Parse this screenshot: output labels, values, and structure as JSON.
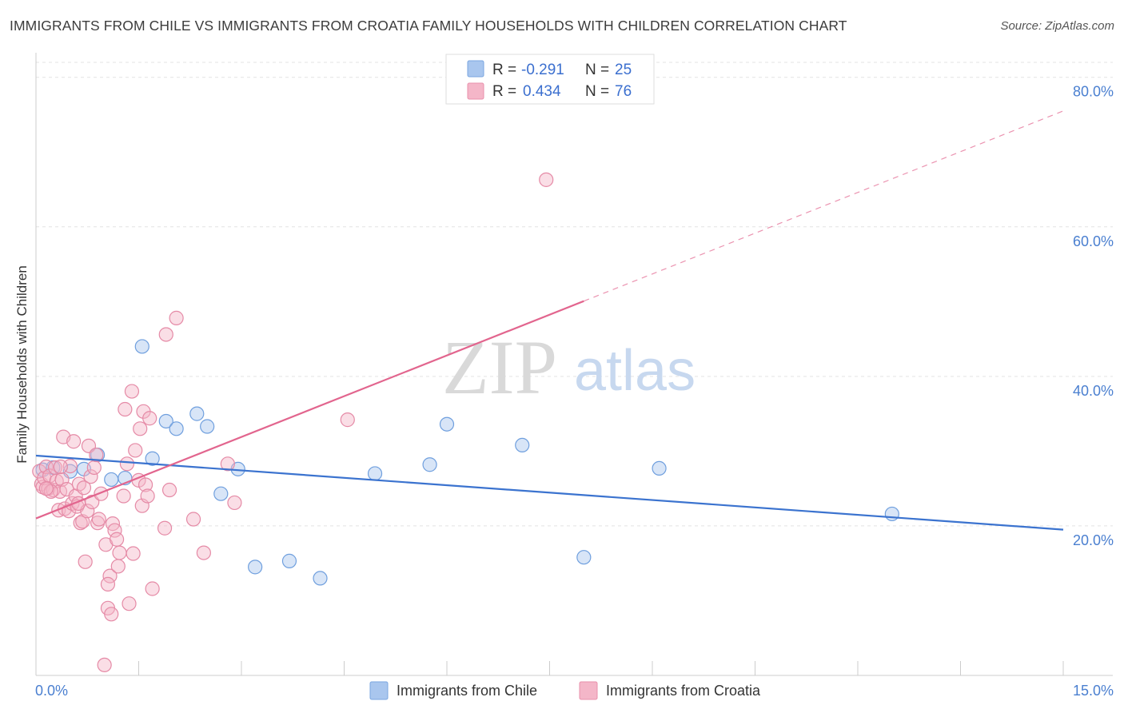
{
  "title": "IMMIGRANTS FROM CHILE VS IMMIGRANTS FROM CROATIA FAMILY HOUSEHOLDS WITH CHILDREN CORRELATION CHART",
  "source": "Source: ZipAtlas.com",
  "watermark": {
    "zip": "ZIP",
    "atlas": "atlas"
  },
  "legend_top": [
    {
      "r_label": "R =",
      "r_value": "-0.291",
      "n_label": "N =",
      "n_value": "25",
      "color": "#a9c6ee"
    },
    {
      "r_label": "R =",
      "r_value": "0.434",
      "n_label": "N =",
      "n_value": "76",
      "color": "#f4b6c8"
    }
  ],
  "legend_bottom": [
    {
      "label": "Immigrants from Chile",
      "color": "#a9c6ee"
    },
    {
      "label": "Immigrants from Croatia",
      "color": "#f4b6c8"
    }
  ],
  "chart_data": {
    "type": "scatter",
    "title": "IMMIGRANTS FROM CHILE VS IMMIGRANTS FROM CROATIA FAMILY HOUSEHOLDS WITH CHILDREN CORRELATION CHART",
    "xlabel": "",
    "ylabel": "Family Households with Children",
    "xlim": [
      0,
      15
    ],
    "ylim": [
      0,
      82
    ],
    "x_tick_labels": [
      "0.0%",
      "15.0%"
    ],
    "y_ticks": [
      20,
      40,
      60,
      80
    ],
    "y_tick_labels": [
      "20.0%",
      "40.0%",
      "60.0%",
      "80.0%"
    ],
    "grid": true,
    "legend_position": "top-center",
    "series": [
      {
        "name": "Immigrants from Chile",
        "color": "#a9c6ee",
        "stroke": "#6f9fde",
        "points": [
          [
            0.1,
            27.5
          ],
          [
            0.25,
            27.8
          ],
          [
            0.5,
            27.3
          ],
          [
            0.7,
            27.6
          ],
          [
            0.9,
            29.5
          ],
          [
            1.1,
            26.2
          ],
          [
            1.3,
            26.4
          ],
          [
            1.55,
            44.0
          ],
          [
            1.7,
            29.0
          ],
          [
            1.9,
            34.0
          ],
          [
            2.05,
            33.0
          ],
          [
            2.35,
            35.0
          ],
          [
            2.5,
            33.3
          ],
          [
            2.7,
            24.3
          ],
          [
            2.95,
            27.6
          ],
          [
            3.2,
            14.5
          ],
          [
            3.7,
            15.3
          ],
          [
            4.15,
            13.0
          ],
          [
            4.95,
            27.0
          ],
          [
            5.75,
            28.2
          ],
          [
            6.0,
            33.6
          ],
          [
            7.1,
            30.8
          ],
          [
            8.0,
            15.8
          ],
          [
            9.1,
            27.7
          ],
          [
            12.5,
            21.6
          ]
        ],
        "trend": {
          "x0": 0,
          "y0": 29.4,
          "x1": 15,
          "y1": 19.5,
          "dashed_from": null
        }
      },
      {
        "name": "Immigrants from Croatia",
        "color": "#f4b6c8",
        "stroke": "#e58aa6",
        "points": [
          [
            0.05,
            27.3
          ],
          [
            0.08,
            25.6
          ],
          [
            0.1,
            25.2
          ],
          [
            0.12,
            26.4
          ],
          [
            0.15,
            27.9
          ],
          [
            0.18,
            25.0
          ],
          [
            0.2,
            26.7
          ],
          [
            0.25,
            24.8
          ],
          [
            0.28,
            27.8
          ],
          [
            0.3,
            26.0
          ],
          [
            0.33,
            22.1
          ],
          [
            0.35,
            24.6
          ],
          [
            0.38,
            26.2
          ],
          [
            0.4,
            31.9
          ],
          [
            0.42,
            22.3
          ],
          [
            0.45,
            24.9
          ],
          [
            0.48,
            22.0
          ],
          [
            0.5,
            28.0
          ],
          [
            0.53,
            23.0
          ],
          [
            0.55,
            31.3
          ],
          [
            0.58,
            24.0
          ],
          [
            0.6,
            22.6
          ],
          [
            0.63,
            25.6
          ],
          [
            0.65,
            20.4
          ],
          [
            0.68,
            20.6
          ],
          [
            0.7,
            25.1
          ],
          [
            0.72,
            15.2
          ],
          [
            0.75,
            22.0
          ],
          [
            0.77,
            30.7
          ],
          [
            0.8,
            26.6
          ],
          [
            0.82,
            23.2
          ],
          [
            0.85,
            27.8
          ],
          [
            0.88,
            29.5
          ],
          [
            0.9,
            20.4
          ],
          [
            0.95,
            24.3
          ],
          [
            1.0,
            1.4
          ],
          [
            1.02,
            17.5
          ],
          [
            1.05,
            9.0
          ],
          [
            1.08,
            13.3
          ],
          [
            1.1,
            8.2
          ],
          [
            1.12,
            20.3
          ],
          [
            1.15,
            19.4
          ],
          [
            1.18,
            18.2
          ],
          [
            1.2,
            14.6
          ],
          [
            1.22,
            16.4
          ],
          [
            1.28,
            24.0
          ],
          [
            1.3,
            35.6
          ],
          [
            1.33,
            28.3
          ],
          [
            1.36,
            9.6
          ],
          [
            1.4,
            38.0
          ],
          [
            1.42,
            16.3
          ],
          [
            1.45,
            30.1
          ],
          [
            1.5,
            26.1
          ],
          [
            1.52,
            33.0
          ],
          [
            1.55,
            22.7
          ],
          [
            1.57,
            35.3
          ],
          [
            1.6,
            25.5
          ],
          [
            1.63,
            24.0
          ],
          [
            1.66,
            34.4
          ],
          [
            1.7,
            11.6
          ],
          [
            1.9,
            45.6
          ],
          [
            1.95,
            24.8
          ],
          [
            2.05,
            47.8
          ],
          [
            2.3,
            20.9
          ],
          [
            2.45,
            16.4
          ],
          [
            2.8,
            28.3
          ],
          [
            2.9,
            23.1
          ],
          [
            4.55,
            34.2
          ],
          [
            7.45,
            66.3
          ],
          [
            1.88,
            19.7
          ],
          [
            0.22,
            24.6
          ],
          [
            0.36,
            27.9
          ],
          [
            0.62,
            23.0
          ],
          [
            0.92,
            20.9
          ],
          [
            1.05,
            12.2
          ],
          [
            0.15,
            25.0
          ]
        ],
        "trend": {
          "x0": 0,
          "y0": 21.0,
          "x1": 15,
          "y1": 75.5,
          "dashed_from": 8.0
        }
      }
    ]
  }
}
